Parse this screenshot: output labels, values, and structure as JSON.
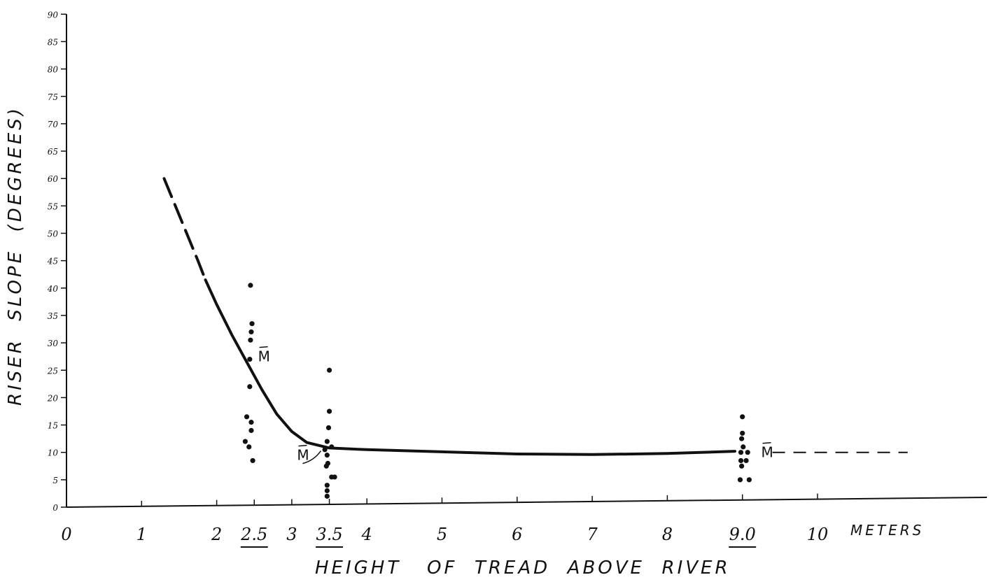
{
  "chart_data": {
    "type": "scatter",
    "xlabel": "HEIGHT   OF  TREAD  ABOVE  RIVER",
    "ylabel": "RISER  SLOPE  (DEGREES)",
    "x_unit_label": "METERS",
    "xlim": [
      0,
      11.5
    ],
    "ylim": [
      0,
      90
    ],
    "x_ticks": [
      {
        "value": 0,
        "label": "0",
        "underlined": false
      },
      {
        "value": 1,
        "label": "1",
        "underlined": false
      },
      {
        "value": 2,
        "label": "2",
        "underlined": false
      },
      {
        "value": 2.5,
        "label": "2.5",
        "underlined": true
      },
      {
        "value": 3,
        "label": "3",
        "underlined": false
      },
      {
        "value": 3.5,
        "label": "3.5",
        "underlined": true
      },
      {
        "value": 4,
        "label": "4",
        "underlined": false
      },
      {
        "value": 5,
        "label": "5",
        "underlined": false
      },
      {
        "value": 6,
        "label": "6",
        "underlined": false
      },
      {
        "value": 7,
        "label": "7",
        "underlined": false
      },
      {
        "value": 8,
        "label": "8",
        "underlined": false
      },
      {
        "value": 9,
        "label": "9.0",
        "underlined": true
      },
      {
        "value": 10,
        "label": "10",
        "underlined": false
      }
    ],
    "y_ticks": [
      0,
      5,
      10,
      15,
      20,
      25,
      30,
      35,
      40,
      45,
      50,
      55,
      60,
      65,
      70,
      75,
      80,
      85,
      90
    ],
    "grid": false,
    "points": [
      {
        "x": 2.45,
        "y": 40.5
      },
      {
        "x": 2.47,
        "y": 33.5
      },
      {
        "x": 2.46,
        "y": 32
      },
      {
        "x": 2.45,
        "y": 30.5
      },
      {
        "x": 2.44,
        "y": 27
      },
      {
        "x": 2.44,
        "y": 22
      },
      {
        "x": 2.4,
        "y": 16.5
      },
      {
        "x": 2.46,
        "y": 15.5
      },
      {
        "x": 2.46,
        "y": 14
      },
      {
        "x": 2.38,
        "y": 12
      },
      {
        "x": 2.43,
        "y": 11
      },
      {
        "x": 2.48,
        "y": 8.5
      },
      {
        "x": 3.5,
        "y": 25
      },
      {
        "x": 3.5,
        "y": 17.5
      },
      {
        "x": 3.49,
        "y": 14.5
      },
      {
        "x": 3.47,
        "y": 12
      },
      {
        "x": 3.44,
        "y": 10.5
      },
      {
        "x": 3.53,
        "y": 11
      },
      {
        "x": 3.47,
        "y": 9.5
      },
      {
        "x": 3.48,
        "y": 8
      },
      {
        "x": 3.46,
        "y": 7.5
      },
      {
        "x": 3.53,
        "y": 5.5
      },
      {
        "x": 3.57,
        "y": 5.5
      },
      {
        "x": 3.47,
        "y": 4
      },
      {
        "x": 3.47,
        "y": 3
      },
      {
        "x": 3.47,
        "y": 2
      },
      {
        "x": 9.0,
        "y": 16.5
      },
      {
        "x": 9.0,
        "y": 13.5
      },
      {
        "x": 8.99,
        "y": 12.5
      },
      {
        "x": 9.01,
        "y": 11
      },
      {
        "x": 8.98,
        "y": 10
      },
      {
        "x": 9.07,
        "y": 10
      },
      {
        "x": 8.98,
        "y": 8.5
      },
      {
        "x": 9.05,
        "y": 8.5
      },
      {
        "x": 8.99,
        "y": 7.5
      },
      {
        "x": 8.97,
        "y": 5
      },
      {
        "x": 9.09,
        "y": 5
      }
    ],
    "curve_dashed": [
      [
        1.3,
        60
      ],
      [
        1.45,
        55
      ],
      [
        1.6,
        50
      ],
      [
        1.75,
        45
      ],
      [
        1.85,
        41.5
      ]
    ],
    "curve_solid": [
      [
        1.85,
        41.5
      ],
      [
        2.0,
        37
      ],
      [
        2.2,
        31.5
      ],
      [
        2.4,
        26.5
      ],
      [
        2.6,
        21.5
      ],
      [
        2.8,
        17
      ],
      [
        3.0,
        13.8
      ],
      [
        3.2,
        11.8
      ],
      [
        3.5,
        10.8
      ],
      [
        4.0,
        10.5
      ],
      [
        5.0,
        10.1
      ],
      [
        6.0,
        9.7
      ],
      [
        7.0,
        9.6
      ],
      [
        8.0,
        9.8
      ],
      [
        8.9,
        10.2
      ]
    ],
    "curve_tail_dashed": [
      [
        9.4,
        10
      ],
      [
        11.2,
        10
      ]
    ],
    "mean_markers": [
      {
        "label": "M",
        "x": 2.55,
        "y": 27.5
      },
      {
        "label": "M",
        "x": 3.07,
        "y": 9.5
      },
      {
        "label": "M",
        "x": 9.25,
        "y": 10
      }
    ]
  }
}
